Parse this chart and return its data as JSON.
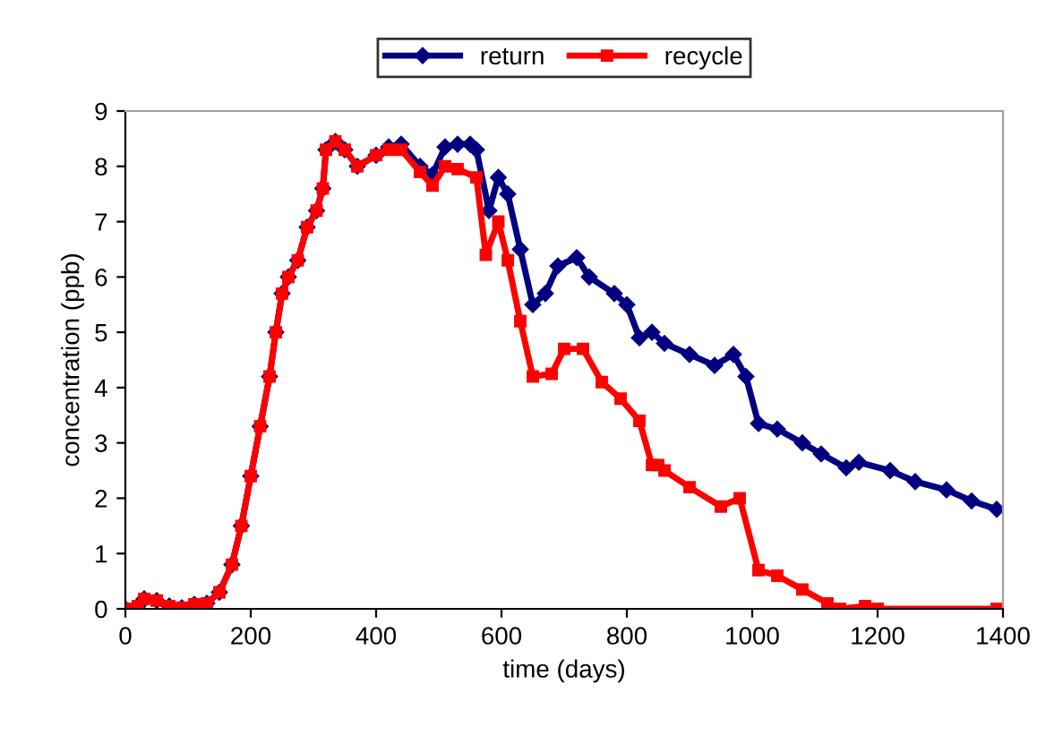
{
  "chart_data": {
    "type": "line",
    "xlabel": "time (days)",
    "ylabel": "concentration (ppb)",
    "xlim": [
      0,
      1400
    ],
    "xticks": [
      0,
      200,
      400,
      600,
      800,
      1000,
      1200,
      1400
    ],
    "ylim": [
      0,
      9
    ],
    "yticks": [
      0,
      1,
      2,
      3,
      4,
      5,
      6,
      7,
      8,
      9
    ],
    "grid": false,
    "legend": "top",
    "series": [
      {
        "name": "return",
        "color": "#000080",
        "marker": "diamond",
        "x": [
          0,
          20,
          30,
          50,
          70,
          90,
          110,
          130,
          150,
          170,
          185,
          200,
          215,
          230,
          240,
          250,
          260,
          275,
          290,
          305,
          315,
          320,
          335,
          350,
          370,
          400,
          420,
          440,
          470,
          490,
          510,
          530,
          550,
          560,
          580,
          595,
          610,
          630,
          650,
          670,
          690,
          720,
          740,
          780,
          800,
          820,
          840,
          860,
          900,
          940,
          970,
          990,
          1010,
          1040,
          1080,
          1110,
          1150,
          1170,
          1220,
          1260,
          1310,
          1350,
          1390
        ],
        "values": [
          0,
          0.05,
          0.18,
          0.15,
          0.05,
          0.02,
          0.08,
          0.1,
          0.3,
          0.8,
          1.5,
          2.4,
          3.3,
          4.2,
          5.0,
          5.7,
          6.0,
          6.3,
          6.9,
          7.2,
          7.6,
          8.3,
          8.45,
          8.3,
          8.0,
          8.2,
          8.35,
          8.4,
          8.0,
          7.85,
          8.35,
          8.4,
          8.4,
          8.3,
          7.2,
          7.8,
          7.5,
          6.5,
          5.5,
          5.7,
          6.2,
          6.35,
          6.0,
          5.7,
          5.5,
          4.9,
          5.0,
          4.8,
          4.6,
          4.4,
          4.6,
          4.2,
          3.35,
          3.25,
          3.0,
          2.8,
          2.55,
          2.65,
          2.5,
          2.3,
          2.15,
          1.95,
          1.8
        ]
      },
      {
        "name": "recycle",
        "color": "#ff0000",
        "marker": "square",
        "x": [
          0,
          20,
          30,
          50,
          70,
          90,
          110,
          130,
          150,
          170,
          185,
          200,
          215,
          230,
          240,
          250,
          260,
          275,
          290,
          305,
          315,
          320,
          335,
          350,
          370,
          400,
          420,
          440,
          470,
          490,
          510,
          530,
          560,
          575,
          595,
          610,
          630,
          650,
          680,
          700,
          730,
          760,
          790,
          820,
          840,
          850,
          860,
          900,
          950,
          980,
          1010,
          1040,
          1080,
          1120,
          1140,
          1180,
          1200,
          1390
        ],
        "values": [
          0,
          0.05,
          0.18,
          0.15,
          0.05,
          0.02,
          0.08,
          0.1,
          0.3,
          0.8,
          1.5,
          2.4,
          3.3,
          4.2,
          5.0,
          5.7,
          6.0,
          6.3,
          6.9,
          7.2,
          7.6,
          8.3,
          8.45,
          8.3,
          8.0,
          8.2,
          8.3,
          8.3,
          7.9,
          7.65,
          8.0,
          7.95,
          7.8,
          6.4,
          7.0,
          6.3,
          5.2,
          4.2,
          4.25,
          4.7,
          4.7,
          4.1,
          3.8,
          3.4,
          2.6,
          2.6,
          2.5,
          2.2,
          1.85,
          2.0,
          0.7,
          0.6,
          0.35,
          0.1,
          0.0,
          0.05,
          0.0,
          0.0
        ]
      }
    ]
  }
}
